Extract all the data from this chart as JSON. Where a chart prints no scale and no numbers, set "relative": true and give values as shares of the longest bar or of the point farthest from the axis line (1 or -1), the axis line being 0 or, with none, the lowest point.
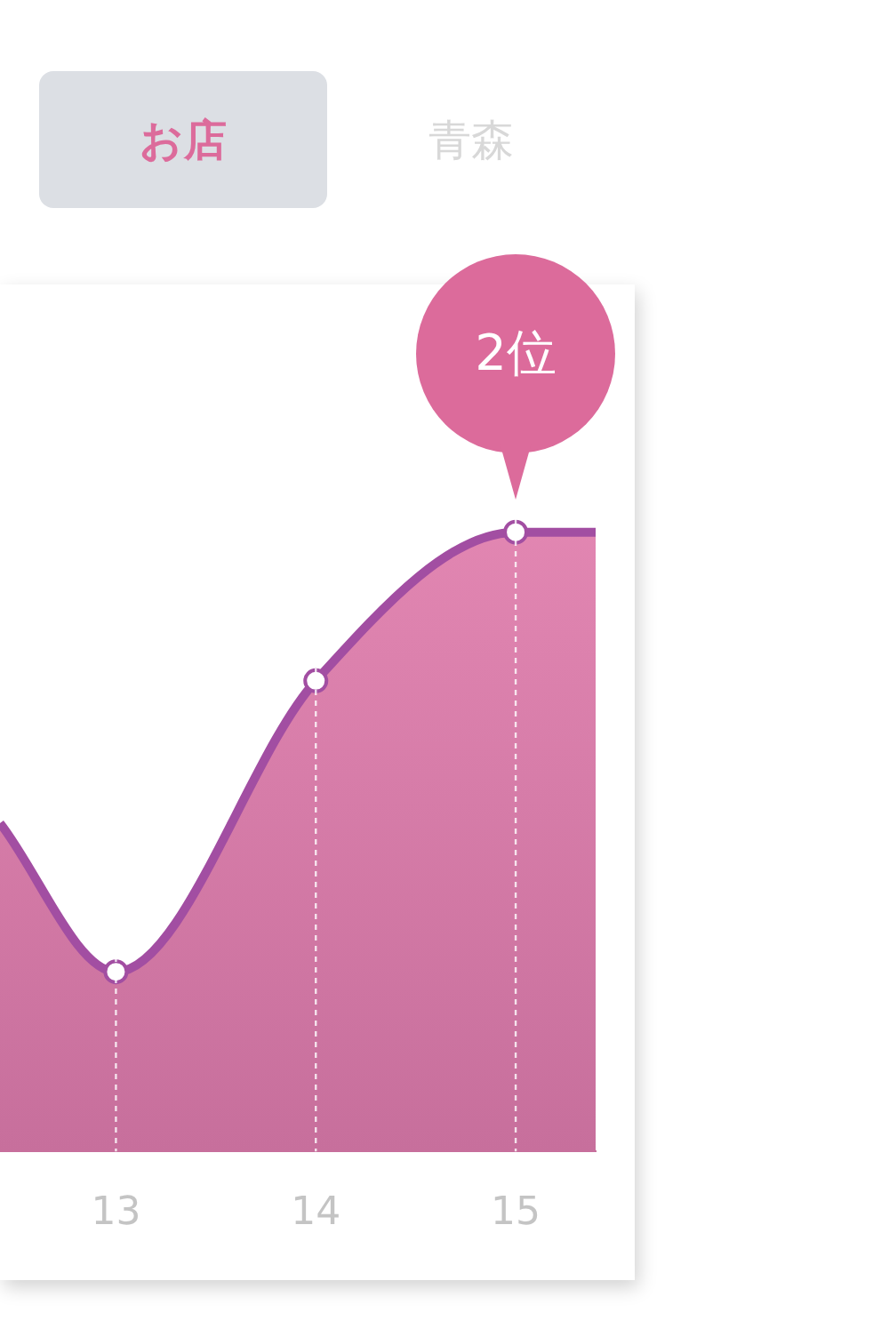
{
  "chart_data": {
    "type": "area",
    "relative": true,
    "x": [
      12.42,
      13,
      14,
      15,
      15.4
    ],
    "xlim": [
      12.42,
      15.4
    ],
    "xticks": [
      13,
      14,
      15
    ],
    "series": [
      {
        "color": "#a24ea2",
        "values": [
          0.53,
          0.29,
          0.76,
          1,
          1
        ]
      }
    ],
    "marker": "circle",
    "grid": "x",
    "legend": false,
    "tick_labels": "x",
    "annotations": [
      "2位",
      "お店",
      "青森"
    ]
  }
}
